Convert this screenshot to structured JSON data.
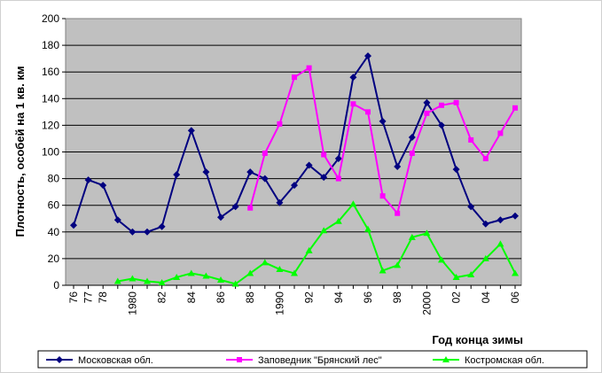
{
  "chart_data": {
    "type": "line",
    "title": "",
    "xlabel": "Год конца зимы",
    "ylabel": "Плотность, особей на 1 кв. км",
    "ylim": [
      0,
      200
    ],
    "yticks": [
      0,
      20,
      40,
      60,
      80,
      100,
      120,
      140,
      160,
      180,
      200
    ],
    "xlim": [
      1976,
      2006
    ],
    "x_tick_labels": [
      {
        "x": 1976,
        "label": "76"
      },
      {
        "x": 1977,
        "label": "77"
      },
      {
        "x": 1978,
        "label": "78"
      },
      {
        "x": 1980,
        "label": "1980"
      },
      {
        "x": 1982,
        "label": "82"
      },
      {
        "x": 1984,
        "label": "84"
      },
      {
        "x": 1986,
        "label": "86"
      },
      {
        "x": 1988,
        "label": "88"
      },
      {
        "x": 1990,
        "label": "1990"
      },
      {
        "x": 1992,
        "label": "92"
      },
      {
        "x": 1994,
        "label": "94"
      },
      {
        "x": 1996,
        "label": "96"
      },
      {
        "x": 1998,
        "label": "98"
      },
      {
        "x": 2000,
        "label": "2000"
      },
      {
        "x": 2002,
        "label": "02"
      },
      {
        "x": 2004,
        "label": "04"
      },
      {
        "x": 2006,
        "label": "06"
      }
    ],
    "plot_background": "#c0c0c0",
    "grid": "horizontal",
    "legend_position": "bottom",
    "series": [
      {
        "name": "Московская обл.",
        "color": "#000080",
        "marker": "diamond",
        "points": [
          [
            1976,
            45
          ],
          [
            1977,
            79
          ],
          [
            1978,
            75
          ],
          [
            1979,
            49
          ],
          [
            1980,
            40
          ],
          [
            1981,
            40
          ],
          [
            1982,
            44
          ],
          [
            1983,
            83
          ],
          [
            1984,
            116
          ],
          [
            1985,
            85
          ],
          [
            1986,
            51
          ],
          [
            1987,
            59
          ],
          [
            1988,
            85
          ],
          [
            1989,
            80
          ],
          [
            1990,
            62
          ],
          [
            1991,
            75
          ],
          [
            1992,
            90
          ],
          [
            1993,
            81
          ],
          [
            1994,
            95
          ],
          [
            1995,
            156
          ],
          [
            1996,
            172
          ],
          [
            1997,
            123
          ],
          [
            1998,
            89
          ],
          [
            1999,
            111
          ],
          [
            2000,
            137
          ],
          [
            2001,
            120
          ],
          [
            2002,
            87
          ],
          [
            2003,
            59
          ],
          [
            2004,
            46
          ],
          [
            2005,
            49
          ],
          [
            2006,
            52
          ]
        ]
      },
      {
        "name": "Заповедник \"Брянский лес\"",
        "color": "#ff00ff",
        "marker": "square",
        "points": [
          [
            1988,
            58
          ],
          [
            1989,
            99
          ],
          [
            1990,
            121
          ],
          [
            1991,
            156
          ],
          [
            1992,
            163
          ],
          [
            1993,
            98
          ],
          [
            1994,
            80
          ],
          [
            1995,
            136
          ],
          [
            1996,
            130
          ],
          [
            1997,
            67
          ],
          [
            1998,
            54
          ],
          [
            1999,
            99
          ],
          [
            2000,
            129
          ],
          [
            2001,
            135
          ],
          [
            2002,
            137
          ],
          [
            2003,
            109
          ],
          [
            2004,
            95
          ],
          [
            2005,
            114
          ],
          [
            2006,
            133
          ]
        ]
      },
      {
        "name": "Костромская обл.",
        "color": "#00ff00",
        "marker": "triangle",
        "points": [
          [
            1979,
            3
          ],
          [
            1980,
            5
          ],
          [
            1981,
            3
          ],
          [
            1982,
            2
          ],
          [
            1983,
            6
          ],
          [
            1984,
            9
          ],
          [
            1985,
            7
          ],
          [
            1986,
            4
          ],
          [
            1987,
            1
          ],
          [
            1988,
            9
          ],
          [
            1989,
            17
          ],
          [
            1990,
            12
          ],
          [
            1991,
            9
          ],
          [
            1992,
            26
          ],
          [
            1993,
            41
          ],
          [
            1994,
            48
          ],
          [
            1995,
            61
          ],
          [
            1996,
            42
          ],
          [
            1997,
            11
          ],
          [
            1998,
            15
          ],
          [
            1999,
            36
          ],
          [
            2000,
            39
          ],
          [
            2001,
            19
          ],
          [
            2002,
            6
          ],
          [
            2003,
            8
          ],
          [
            2004,
            20
          ],
          [
            2005,
            31
          ],
          [
            2006,
            9
          ]
        ]
      }
    ]
  }
}
